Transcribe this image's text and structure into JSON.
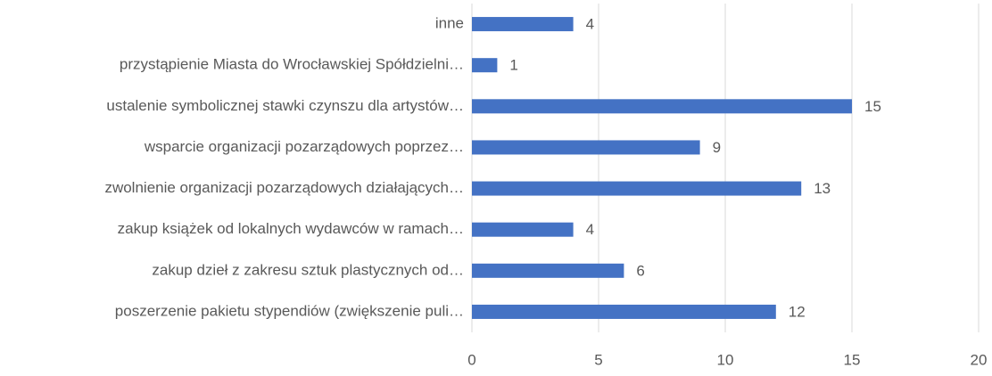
{
  "chart_data": {
    "type": "bar",
    "orientation": "horizontal",
    "categories": [
      "inne",
      "przystąpienie Miasta do Wrocławskiej Spółdzielni…",
      "ustalenie symbolicznej stawki czynszu dla artystów…",
      "wsparcie organizacji pozarządowych poprzez…",
      "zwolnienie organizacji pozarządowych działających…",
      "zakup książek od lokalnych wydawców w ramach…",
      "zakup dzieł z zakresu sztuk plastycznych od…",
      "poszerzenie pakietu stypendiów (zwiększenie puli…"
    ],
    "values": [
      4,
      1,
      15,
      9,
      13,
      4,
      6,
      12
    ],
    "color": "#4472c4",
    "xlim": [
      0,
      20
    ],
    "xticks": [
      0,
      5,
      10,
      15,
      20
    ],
    "grid": true
  }
}
